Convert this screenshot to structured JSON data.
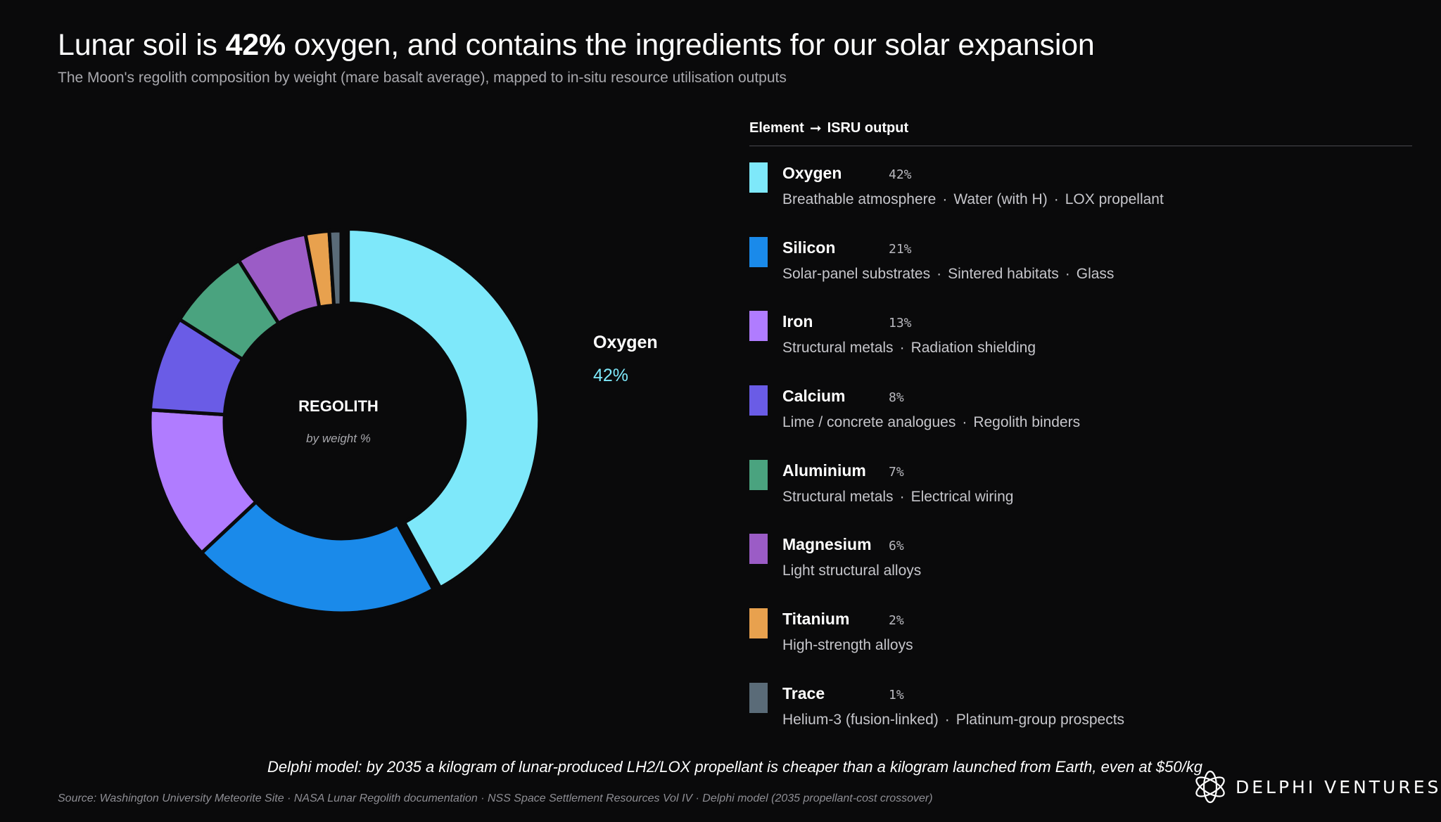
{
  "header": {
    "title_pre": "Lunar soil is ",
    "title_highlight": "42%",
    "title_post": " oxygen, and contains the ingredients for our solar expansion",
    "subtitle": "The Moon's regolith composition by weight (mare basalt average), mapped to in-situ resource utilisation outputs"
  },
  "donut_center": {
    "label": "REGOLITH",
    "sublabel": "by weight %"
  },
  "callout": {
    "name": "Oxygen",
    "value": "42%",
    "color": "#7ee8fa"
  },
  "legend": {
    "header_left": "Element",
    "header_right": "ISRU output",
    "items": [
      {
        "name": "Oxygen",
        "pct": "42%",
        "color": "#7ee8fa",
        "uses": [
          "Breathable atmosphere",
          "Water (with H)",
          "LOX propellant"
        ]
      },
      {
        "name": "Silicon",
        "pct": "21%",
        "color": "#1a8aea",
        "uses": [
          "Solar-panel substrates",
          "Sintered habitats",
          "Glass"
        ]
      },
      {
        "name": "Iron",
        "pct": "13%",
        "color": "#b07cff",
        "uses": [
          "Structural metals",
          "Radiation shielding"
        ]
      },
      {
        "name": "Calcium",
        "pct": "8%",
        "color": "#6a5ce6",
        "uses": [
          "Lime / concrete analogues",
          "Regolith binders"
        ]
      },
      {
        "name": "Aluminium",
        "pct": "7%",
        "color": "#4aa37f",
        "uses": [
          "Structural metals",
          "Electrical wiring"
        ]
      },
      {
        "name": "Magnesium",
        "pct": "6%",
        "color": "#9b5cc6",
        "uses": [
          "Light structural alloys"
        ]
      },
      {
        "name": "Titanium",
        "pct": "2%",
        "color": "#e8a14e",
        "uses": [
          "High-strength alloys"
        ]
      },
      {
        "name": "Trace",
        "pct": "1%",
        "color": "#5a6b78",
        "uses": [
          "Helium-3 (fusion-linked)",
          "Platinum-group prospects"
        ]
      }
    ]
  },
  "chart_data": {
    "type": "pie",
    "categories": [
      "Oxygen",
      "Silicon",
      "Iron",
      "Calcium",
      "Aluminium",
      "Magnesium",
      "Titanium",
      "Trace"
    ],
    "values": [
      42,
      21,
      13,
      8,
      7,
      6,
      2,
      1
    ],
    "colors": [
      "#7ee8fa",
      "#1a8aea",
      "#b07cff",
      "#6a5ce6",
      "#4aa37f",
      "#9b5cc6",
      "#e8a14e",
      "#5a6b78"
    ],
    "exploded": "Oxygen"
  },
  "footer": {
    "note": "Delphi model: by 2035 a kilogram of lunar-produced LH2/LOX propellant is cheaper than a kilogram launched from Earth, even at $50/kg",
    "source": "Source: Washington University Meteorite Site · NASA Lunar Regolith documentation · NSS Space Settlement Resources Vol IV · Delphi model (2035 propellant-cost crossover)",
    "brand": "DELPHI VENTURES"
  }
}
